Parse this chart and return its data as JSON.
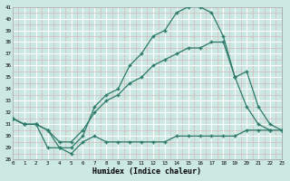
{
  "xlabel": "Humidex (Indice chaleur)",
  "bg_color": "#cce8e2",
  "line_color": "#2d7a6a",
  "grid_major_color": "#ffffff",
  "grid_minor_color": "#d4b0b0",
  "xmin": 0,
  "xmax": 23,
  "ymin": 28,
  "ymax": 41,
  "series1_x": [
    0,
    1,
    2,
    3,
    4,
    5,
    6,
    7,
    8,
    9,
    10,
    11,
    12,
    13,
    14,
    15,
    16,
    17,
    18,
    19,
    20,
    21,
    22
  ],
  "series1_y": [
    31.5,
    31.0,
    31.0,
    30.5,
    29.0,
    29.0,
    30.0,
    32.5,
    33.5,
    34.0,
    36.0,
    37.0,
    38.5,
    39.0,
    40.5,
    41.0,
    41.0,
    40.5,
    38.5,
    35.0,
    32.5,
    31.0,
    30.5
  ],
  "series2_x": [
    0,
    1,
    2,
    3,
    4,
    5,
    6,
    7,
    8,
    9,
    10,
    11,
    12,
    13,
    14,
    15,
    16,
    17,
    18,
    19,
    20,
    21,
    22,
    23
  ],
  "series2_y": [
    31.5,
    31.0,
    31.0,
    30.5,
    29.5,
    29.5,
    30.5,
    32.0,
    33.0,
    33.5,
    34.5,
    35.0,
    36.0,
    36.5,
    37.0,
    37.5,
    37.5,
    38.0,
    38.0,
    35.0,
    35.5,
    32.5,
    31.0,
    30.5
  ],
  "series3_x": [
    0,
    1,
    2,
    3,
    4,
    5,
    6,
    7,
    8,
    9,
    10,
    11,
    12,
    13,
    14,
    15,
    16,
    17,
    18,
    19,
    20,
    21,
    22,
    23
  ],
  "series3_y": [
    31.5,
    31.0,
    31.0,
    29.0,
    29.0,
    28.5,
    29.5,
    30.0,
    29.5,
    29.5,
    29.5,
    29.5,
    29.5,
    29.5,
    30.0,
    30.0,
    30.0,
    30.0,
    30.0,
    30.0,
    30.5,
    30.5,
    30.5,
    30.5
  ]
}
